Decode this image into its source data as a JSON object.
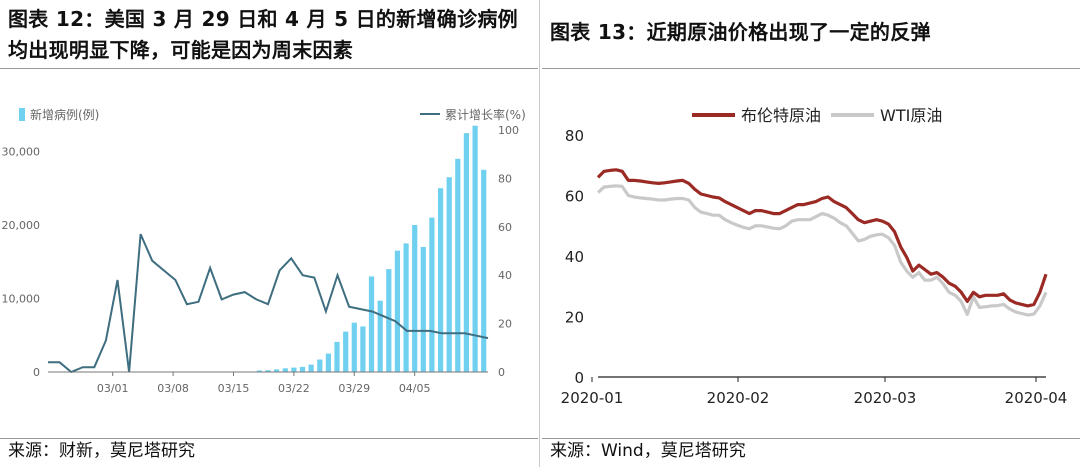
{
  "left": {
    "title_line1": "图表 12：美国 3 月 29 日和 4 月 5 日的新增确诊病例",
    "title_line2": "均出现明显下降，可能是因为周末因素",
    "source": "来源：财新，莫尼塔研究"
  },
  "right": {
    "title": "图表 13：近期原油价格出现了一定的反弹",
    "source": "来源：Wind，莫尼塔研究"
  },
  "colors": {
    "bar": "#70D0F0",
    "line_left": "#3E6E7F",
    "brent": "#9B2A25",
    "wti": "#C9C9C9"
  },
  "chart_data": [
    {
      "type": "bar",
      "series": [
        {
          "name": "新增病例(例)",
          "type": "bar",
          "axis": "left",
          "values": [
            0,
            0,
            0,
            0,
            0,
            0,
            0,
            0,
            0,
            0,
            0,
            0,
            0,
            0,
            0,
            0,
            0,
            0,
            0,
            0,
            0,
            0,
            0,
            0,
            200,
            250,
            350,
            500,
            600,
            700,
            1000,
            1700,
            2500,
            4100,
            5500,
            6700,
            6200,
            13000,
            9700,
            14000,
            16500,
            17500,
            20000,
            17000,
            21000,
            25000,
            26500,
            29000,
            32500,
            33500,
            27500
          ]
        },
        {
          "name": "累计增长率(%)",
          "type": "line",
          "axis": "right",
          "values": [
            4,
            4,
            0,
            2,
            2,
            13,
            38,
            0,
            57,
            46,
            42,
            38,
            28,
            29,
            43,
            30,
            32,
            33,
            30,
            28,
            42,
            47,
            40,
            39,
            25,
            40,
            27,
            26,
            25,
            23,
            21,
            17,
            17,
            17,
            16,
            16,
            16,
            15,
            14
          ]
        }
      ],
      "left_axis": {
        "ticks": [
          "0",
          "10,000",
          "20,000",
          "30,000"
        ],
        "range": [
          0,
          37000
        ]
      },
      "right_axis": {
        "ticks": [
          "0",
          "20",
          "40",
          "60",
          "80",
          "100"
        ],
        "range": [
          0,
          100
        ]
      },
      "x_tick_labels": [
        "03/01",
        "03/08",
        "03/15",
        "03/22",
        "03/29",
        "04/05"
      ],
      "legend_position": "top"
    },
    {
      "type": "line",
      "series": [
        {
          "name": "布伦特原油",
          "values": [
            66,
            68,
            68.3,
            68.5,
            68,
            65,
            65,
            64.8,
            64.5,
            64.2,
            64,
            64.2,
            64.5,
            64.8,
            65,
            64,
            62,
            60.5,
            60,
            59.5,
            59.2,
            58,
            57,
            56,
            55,
            54,
            55,
            55,
            54.5,
            54,
            54,
            55,
            56,
            57,
            57,
            57.5,
            58,
            59,
            59.5,
            58,
            57,
            56,
            54,
            52,
            51,
            51.5,
            52,
            51.5,
            50.5,
            48,
            43,
            39.5,
            35,
            37,
            35.5,
            34,
            34.5,
            33,
            31,
            30,
            28,
            25,
            28,
            26.5,
            27,
            27,
            27,
            27.5,
            25.5,
            24.5,
            24,
            23.5,
            24,
            28,
            34
          ]
        },
        {
          "name": "WTI原油",
          "values": [
            61,
            62.8,
            63,
            63.2,
            63,
            60,
            59.5,
            59.2,
            59,
            58.8,
            58.5,
            58.5,
            58.8,
            59,
            59,
            58.5,
            56,
            54.5,
            54,
            53.5,
            53.5,
            52,
            51,
            50.2,
            49.5,
            49,
            50,
            50,
            49.6,
            49.2,
            49,
            50,
            51.5,
            52,
            52,
            52,
            53,
            54,
            53.5,
            52.5,
            51,
            50,
            47.5,
            45,
            45.5,
            46.5,
            47,
            47.2,
            46,
            43.5,
            38,
            35,
            33,
            34.5,
            32,
            32,
            33,
            30.8,
            28,
            27,
            25,
            20.7,
            26.5,
            23,
            23.2,
            23.5,
            23.6,
            24,
            22.5,
            21.5,
            21,
            20.5,
            20.8,
            23.5,
            28
          ]
        }
      ],
      "y_ticks": [
        "0",
        "20",
        "40",
        "60",
        "80"
      ],
      "y_range": [
        0,
        80
      ],
      "x_tick_labels": [
        "2020-01",
        "2020-02",
        "2020-03",
        "2020-04"
      ],
      "legend_position": "top"
    }
  ]
}
